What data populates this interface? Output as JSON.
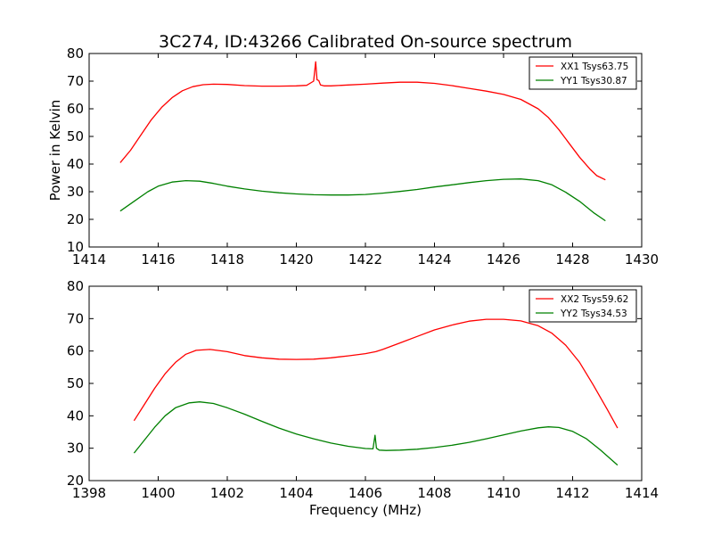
{
  "figure": {
    "title": "3C274, ID:43266 Calibrated On-source spectrum"
  },
  "chart_data": [
    {
      "type": "line",
      "title": "3C274, ID:43266 Calibrated On-source spectrum",
      "xlabel": "",
      "ylabel": "Power in Kelvin",
      "xlim": [
        1414,
        1430
      ],
      "ylim": [
        10,
        80
      ],
      "x_ticks": [
        1414,
        1416,
        1418,
        1420,
        1422,
        1424,
        1426,
        1428,
        1430
      ],
      "y_ticks": [
        10,
        20,
        30,
        40,
        50,
        60,
        70,
        80
      ],
      "grid": false,
      "legend_position": "top-right",
      "series": [
        {
          "name": "XX1 Tsys63.75",
          "color": "#ff0000",
          "x": [
            1414.9,
            1415.2,
            1415.5,
            1415.8,
            1416.1,
            1416.4,
            1416.7,
            1417.0,
            1417.3,
            1417.6,
            1418.0,
            1418.5,
            1419.0,
            1419.5,
            1420.0,
            1420.3,
            1420.5,
            1420.56,
            1420.6,
            1420.65,
            1420.7,
            1420.8,
            1421.0,
            1421.5,
            1422.0,
            1422.5,
            1423.0,
            1423.5,
            1424.0,
            1424.5,
            1425.0,
            1425.5,
            1426.0,
            1426.5,
            1427.0,
            1427.3,
            1427.6,
            1427.9,
            1428.2,
            1428.5,
            1428.7,
            1428.95
          ],
          "y": [
            40.5,
            45.0,
            50.5,
            56.0,
            60.5,
            64.0,
            66.5,
            68.0,
            68.7,
            68.9,
            68.8,
            68.4,
            68.2,
            68.2,
            68.3,
            68.5,
            70.0,
            77.0,
            70.5,
            70.2,
            68.6,
            68.3,
            68.3,
            68.6,
            68.9,
            69.3,
            69.6,
            69.6,
            69.2,
            68.4,
            67.4,
            66.4,
            65.2,
            63.4,
            60.0,
            56.8,
            52.5,
            47.5,
            42.5,
            38.2,
            35.8,
            34.3
          ]
        },
        {
          "name": "YY1 Tsys30.87",
          "color": "#008000",
          "x": [
            1414.9,
            1415.3,
            1415.7,
            1416.0,
            1416.4,
            1416.8,
            1417.2,
            1417.6,
            1418.0,
            1418.5,
            1419.0,
            1419.5,
            1420.0,
            1420.5,
            1421.0,
            1421.5,
            1422.0,
            1422.5,
            1423.0,
            1423.5,
            1424.0,
            1424.5,
            1425.0,
            1425.5,
            1426.0,
            1426.5,
            1427.0,
            1427.4,
            1427.8,
            1428.2,
            1428.6,
            1428.95
          ],
          "y": [
            23.0,
            26.5,
            30.0,
            32.0,
            33.5,
            34.0,
            33.8,
            33.0,
            32.0,
            31.0,
            30.2,
            29.6,
            29.2,
            28.9,
            28.8,
            28.8,
            29.0,
            29.5,
            30.1,
            30.8,
            31.7,
            32.5,
            33.3,
            34.0,
            34.5,
            34.6,
            34.0,
            32.5,
            29.8,
            26.5,
            22.5,
            19.5
          ]
        }
      ]
    },
    {
      "type": "line",
      "title": "",
      "xlabel": "Frequency (MHz)",
      "ylabel": "",
      "xlim": [
        1398,
        1414
      ],
      "ylim": [
        20,
        80
      ],
      "x_ticks": [
        1398,
        1400,
        1402,
        1404,
        1406,
        1408,
        1410,
        1412,
        1414
      ],
      "y_ticks": [
        20,
        30,
        40,
        50,
        60,
        70,
        80
      ],
      "grid": false,
      "legend_position": "top-right",
      "series": [
        {
          "name": "XX2 Tsys59.62",
          "color": "#ff0000",
          "x": [
            1399.3,
            1399.6,
            1399.9,
            1400.2,
            1400.5,
            1400.8,
            1401.1,
            1401.5,
            1402.0,
            1402.5,
            1403.0,
            1403.5,
            1404.0,
            1404.5,
            1405.0,
            1405.5,
            1406.0,
            1406.3,
            1406.5,
            1407.0,
            1407.5,
            1408.0,
            1408.5,
            1409.0,
            1409.5,
            1410.0,
            1410.5,
            1411.0,
            1411.4,
            1411.8,
            1412.2,
            1412.6,
            1413.0,
            1413.3
          ],
          "y": [
            38.5,
            43.5,
            48.5,
            53.0,
            56.5,
            59.0,
            60.2,
            60.5,
            59.8,
            58.6,
            57.9,
            57.5,
            57.4,
            57.5,
            57.9,
            58.5,
            59.2,
            59.8,
            60.5,
            62.5,
            64.5,
            66.5,
            68.0,
            69.2,
            69.8,
            69.8,
            69.3,
            67.8,
            65.5,
            61.8,
            56.5,
            49.5,
            42.0,
            36.2
          ]
        },
        {
          "name": "YY2 Tsys34.53",
          "color": "#008000",
          "x": [
            1399.3,
            1399.6,
            1399.9,
            1400.2,
            1400.5,
            1400.9,
            1401.2,
            1401.6,
            1402.0,
            1402.5,
            1403.0,
            1403.5,
            1404.0,
            1404.5,
            1405.0,
            1405.5,
            1406.0,
            1406.22,
            1406.28,
            1406.32,
            1406.4,
            1406.6,
            1407.0,
            1407.5,
            1408.0,
            1408.5,
            1409.0,
            1409.5,
            1410.0,
            1410.5,
            1411.0,
            1411.3,
            1411.6,
            1412.0,
            1412.4,
            1412.8,
            1413.3
          ],
          "y": [
            28.5,
            32.5,
            36.5,
            40.0,
            42.5,
            44.0,
            44.3,
            43.8,
            42.5,
            40.5,
            38.3,
            36.2,
            34.4,
            32.9,
            31.6,
            30.6,
            29.9,
            29.8,
            34.0,
            30.0,
            29.4,
            29.3,
            29.4,
            29.7,
            30.2,
            30.9,
            31.8,
            32.9,
            34.1,
            35.3,
            36.3,
            36.6,
            36.4,
            35.2,
            32.9,
            29.5,
            24.8
          ]
        }
      ]
    }
  ]
}
